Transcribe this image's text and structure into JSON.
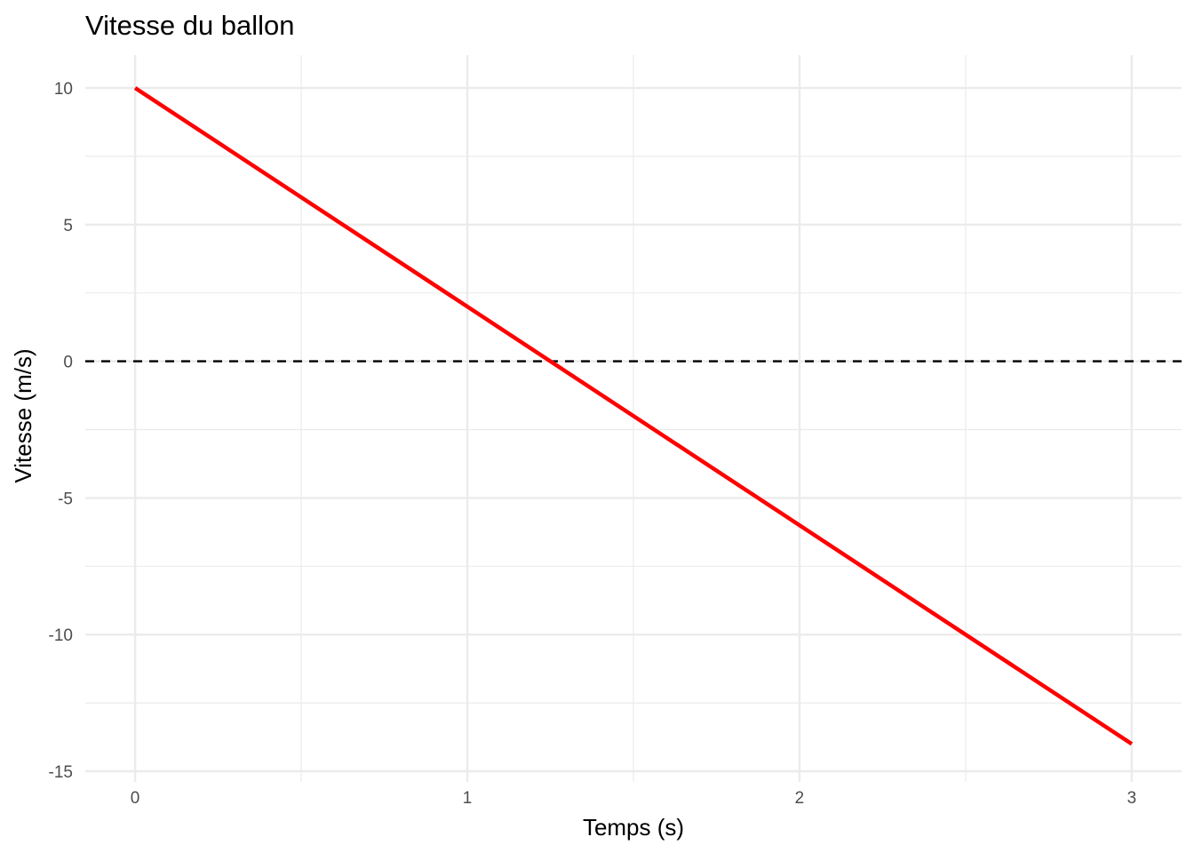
{
  "chart_data": {
    "type": "line",
    "title": "Vitesse du ballon",
    "xlabel": "Temps (s)",
    "ylabel": "Vitesse (m/s)",
    "xlim": [
      -0.15,
      3.15
    ],
    "ylim": [
      -15,
      10
    ],
    "x_ticks": [
      0,
      1,
      2,
      3
    ],
    "x_tick_labels": [
      "0",
      "1",
      "2",
      "3"
    ],
    "x_minor_ticks": [
      0.5,
      1.5,
      2.5
    ],
    "y_ticks": [
      -15,
      -10,
      -5,
      0,
      5,
      10
    ],
    "y_tick_labels": [
      "-15",
      "-10",
      "-5",
      "0",
      "5",
      "10"
    ],
    "y_minor_ticks": [
      -12.5,
      -7.5,
      -2.5,
      2.5,
      7.5
    ],
    "grid": true,
    "legend": "none",
    "series": [
      {
        "x": [
          0,
          3
        ],
        "values": [
          10,
          -14
        ],
        "color": "#ff0000",
        "style": "solid"
      }
    ],
    "reference_lines": [
      {
        "y": 0,
        "color": "#000000",
        "style": "dashed"
      }
    ]
  }
}
